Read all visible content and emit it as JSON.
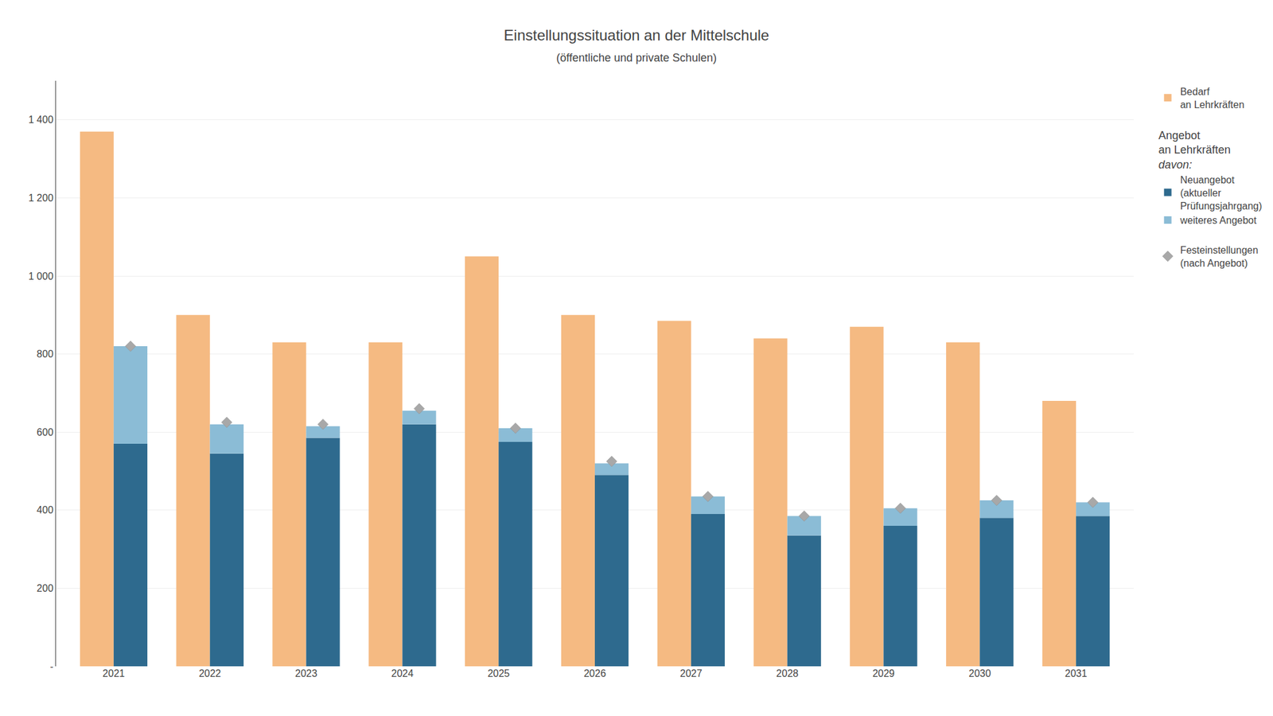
{
  "chart_data": {
    "type": "bar",
    "title": "Einstellungssituation an der Mittelschule",
    "subtitle": "(öffentliche und private Schulen)",
    "categories": [
      2021,
      2022,
      2023,
      2024,
      2025,
      2026,
      2027,
      2028,
      2029,
      2030,
      2031
    ],
    "series": [
      {
        "name": "Bedarf\nan Lehrkräften",
        "type": "bar",
        "color": "#F5BA82",
        "values": [
          1370,
          900,
          830,
          830,
          1050,
          900,
          885,
          840,
          870,
          830,
          680
        ]
      },
      {
        "name": "Neuangebot\n(aktueller\nPrüfungsjahrgang)",
        "type": "bar",
        "stacked": true,
        "color": "#2E6A8E",
        "values": [
          570,
          545,
          585,
          620,
          575,
          490,
          390,
          335,
          360,
          380,
          385
        ]
      },
      {
        "name": "weiteres Angebot",
        "type": "bar",
        "stacked": true,
        "color": "#8BBCD6",
        "values": [
          250,
          75,
          30,
          35,
          35,
          30,
          45,
          50,
          45,
          45,
          35
        ]
      },
      {
        "name": "Festeinstellungen\n(nach Angebot)",
        "type": "scatter",
        "marker": "diamond",
        "color": "#A8A8A8",
        "values": [
          820,
          625,
          620,
          660,
          610,
          525,
          435,
          385,
          405,
          425,
          420
        ]
      }
    ],
    "annotations": [
      "Angebot\nan Lehrkräften",
      "davon:"
    ],
    "ylim": [
      0,
      1500
    ],
    "yticks": [
      {
        "value": 0,
        "label": "-"
      },
      200,
      400,
      600,
      800,
      {
        "value": 1000,
        "label": "1 000"
      },
      {
        "value": 1200,
        "label": "1 200"
      },
      {
        "value": 1400,
        "label": "1 400"
      }
    ],
    "grid": true,
    "legend": "right"
  }
}
